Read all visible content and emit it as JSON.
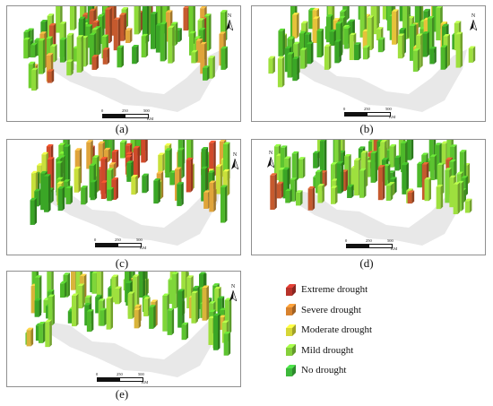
{
  "panels": [
    {
      "id": "a",
      "caption": "(a)",
      "colors": [
        "#6fcf2f",
        "#4db82a",
        "#8fdc3a",
        "#c65a2e",
        "#e0a43a",
        "#3aa626"
      ]
    },
    {
      "id": "b",
      "caption": "(b)",
      "colors": [
        "#5cc430",
        "#4db82a",
        "#7fd63a",
        "#9ee03e",
        "#3aa626",
        "#e6c23a"
      ]
    },
    {
      "id": "c",
      "caption": "(c)",
      "colors": [
        "#6fcf2f",
        "#4db82a",
        "#c9e03c",
        "#e0a43a",
        "#3aa626",
        "#d04a2a"
      ]
    },
    {
      "id": "d",
      "caption": "(d)",
      "colors": [
        "#5cc430",
        "#4db82a",
        "#7fd63a",
        "#3aa626",
        "#c65a2e",
        "#9ee03e"
      ]
    },
    {
      "id": "e",
      "caption": "(e)",
      "colors": [
        "#5cc430",
        "#4db82a",
        "#7fd63a",
        "#3aa626",
        "#d9b43a",
        "#9ee03e"
      ]
    }
  ],
  "map": {
    "north_label": "N",
    "scale_labels": [
      "0",
      "250",
      "500"
    ],
    "scale_unit": "KM"
  },
  "legend": [
    {
      "label": "Extreme drought",
      "color": "#b8322a"
    },
    {
      "label": "Severe drought",
      "color": "#d8822e"
    },
    {
      "label": "Moderate drought",
      "color": "#d6d636"
    },
    {
      "label": "Mild drought",
      "color": "#86cf3a"
    },
    {
      "label": "No drought",
      "color": "#3db83a"
    }
  ]
}
